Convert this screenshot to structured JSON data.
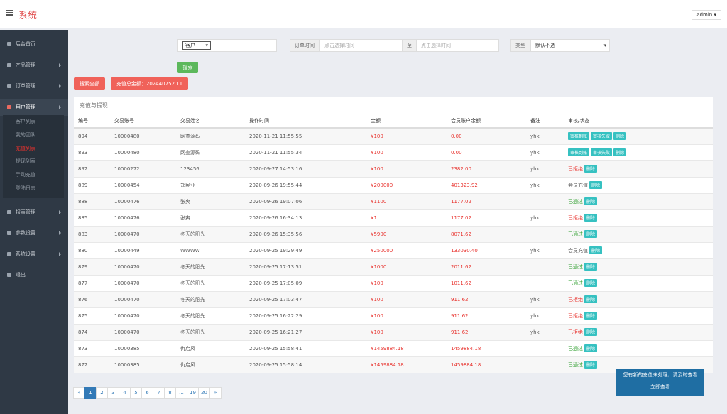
{
  "header": {
    "title": "系统",
    "user": "admin"
  },
  "sidebar": {
    "items": [
      {
        "label": "后台首页"
      },
      {
        "label": "产品管理",
        "has_submenu": true
      },
      {
        "label": "订单管理",
        "has_submenu": true
      },
      {
        "label": "用户管理",
        "has_submenu": true,
        "active": true,
        "children": [
          {
            "label": "客户列表"
          },
          {
            "label": "我的团队"
          },
          {
            "label": "充值列表",
            "active": true
          },
          {
            "label": "提现列表"
          },
          {
            "label": "手动充值"
          },
          {
            "label": "登陆日志"
          }
        ]
      },
      {
        "label": "报表管理",
        "has_submenu": true
      },
      {
        "label": "参数设置",
        "has_submenu": true
      },
      {
        "label": "系统设置",
        "has_submenu": true
      },
      {
        "label": "退出"
      }
    ]
  },
  "search": {
    "customer_select": "客户",
    "time_label": "订单时间",
    "time_from_placeholder": "点击选择时间",
    "to": "至",
    "time_to_placeholder": "点击选择时间",
    "type_label": "类型",
    "type_select": "默认不选",
    "search_button": "搜索",
    "search_all_button": "搜索全部",
    "total": "充值总金额：202440752.11"
  },
  "table": {
    "title": "充值与提现",
    "columns": [
      "编号",
      "交易账号",
      "交易姓名",
      "操作时间",
      "金额",
      "会员账户余额",
      "备注",
      "审核/状态"
    ],
    "rows": [
      {
        "id": "894",
        "account": "10000480",
        "name": "网查源码",
        "time": "2020-11-21 11:55:55",
        "amount": "¥100",
        "balance": "0.00",
        "note": "yhk",
        "actions": [
          "审核到账",
          "审核失败",
          "删除"
        ]
      },
      {
        "id": "893",
        "account": "10000480",
        "name": "网查源码",
        "time": "2020-11-21 11:55:34",
        "amount": "¥100",
        "balance": "0.00",
        "note": "yhk",
        "actions": [
          "审核到账",
          "审核失败",
          "删除"
        ]
      },
      {
        "id": "892",
        "account": "10000272",
        "name": "123456",
        "time": "2020-09-27 14:53:16",
        "amount": "¥100",
        "balance": "2382.00",
        "note": "yhk",
        "status": {
          "text": "已拒绝",
          "color": "#e8322d"
        },
        "actions": [
          "删除"
        ]
      },
      {
        "id": "889",
        "account": "10000454",
        "name": "郑民业",
        "time": "2020-09-26 19:55:44",
        "amount": "¥200000",
        "balance": "401323.92",
        "note": "yhk",
        "status": {
          "text": "会员充值",
          "color": "#555555"
        },
        "actions": [
          "删除"
        ]
      },
      {
        "id": "888",
        "account": "10000476",
        "name": "张爽",
        "time": "2020-09-26 19:07:06",
        "amount": "¥1100",
        "balance": "1177.02",
        "status": {
          "text": "已通过",
          "color": "#2a9d2a"
        },
        "actions": [
          "删除"
        ]
      },
      {
        "id": "885",
        "account": "10000476",
        "name": "张爽",
        "time": "2020-09-26 16:34:13",
        "amount": "¥1",
        "balance": "1177.02",
        "note": "yhk",
        "status": {
          "text": "已拒绝",
          "color": "#e8322d"
        },
        "actions": [
          "删除"
        ]
      },
      {
        "id": "883",
        "account": "10000470",
        "name": "冬天的阳光",
        "time": "2020-09-26 15:35:56",
        "amount": "¥5900",
        "balance": "8071.62",
        "status": {
          "text": "已通过",
          "color": "#2a9d2a"
        },
        "actions": [
          "删除"
        ]
      },
      {
        "id": "880",
        "account": "10000449",
        "name": "WWWW",
        "time": "2020-09-25 19:29:49",
        "amount": "¥250000",
        "balance": "133030.40",
        "note": "yhk",
        "status": {
          "text": "会员充值",
          "color": "#555555"
        },
        "actions": [
          "删除"
        ]
      },
      {
        "id": "879",
        "account": "10000470",
        "name": "冬天的阳光",
        "time": "2020-09-25 17:13:51",
        "amount": "¥1000",
        "balance": "2011.62",
        "status": {
          "text": "已通过",
          "color": "#2a9d2a"
        },
        "actions": [
          "删除"
        ]
      },
      {
        "id": "877",
        "account": "10000470",
        "name": "冬天的阳光",
        "time": "2020-09-25 17:05:09",
        "amount": "¥100",
        "balance": "1011.62",
        "status": {
          "text": "已通过",
          "color": "#2a9d2a"
        },
        "actions": [
          "删除"
        ]
      },
      {
        "id": "876",
        "account": "10000470",
        "name": "冬天的阳光",
        "time": "2020-09-25 17:03:47",
        "amount": "¥100",
        "balance": "911.62",
        "note": "yhk",
        "status": {
          "text": "已拒绝",
          "color": "#e8322d"
        },
        "actions": [
          "删除"
        ]
      },
      {
        "id": "875",
        "account": "10000470",
        "name": "冬天的阳光",
        "time": "2020-09-25 16:22:29",
        "amount": "¥100",
        "balance": "911.62",
        "note": "yhk",
        "status": {
          "text": "已拒绝",
          "color": "#e8322d"
        },
        "actions": [
          "删除"
        ]
      },
      {
        "id": "874",
        "account": "10000470",
        "name": "冬天的阳光",
        "time": "2020-09-25 16:21:27",
        "amount": "¥100",
        "balance": "911.62",
        "note": "yhk",
        "status": {
          "text": "已拒绝",
          "color": "#e8322d"
        },
        "actions": [
          "删除"
        ]
      },
      {
        "id": "873",
        "account": "10000385",
        "name": "仇启风",
        "time": "2020-09-25 15:58:41",
        "amount": "¥1459884.18",
        "balance": "1459884.18",
        "status": {
          "text": "已通过",
          "color": "#2a9d2a"
        },
        "actions": [
          "删除"
        ]
      },
      {
        "id": "872",
        "account": "10000385",
        "name": "仇启风",
        "time": "2020-09-25 15:58:14",
        "amount": "¥1459884.18",
        "balance": "1459884.18",
        "status": {
          "text": "已通过",
          "color": "#2a9d2a"
        },
        "actions": [
          "删除"
        ]
      }
    ]
  },
  "pagination": {
    "pages": [
      "«",
      "1",
      "2",
      "3",
      "4",
      "5",
      "6",
      "7",
      "8",
      "...",
      "19",
      "20",
      "»"
    ],
    "active": 1
  },
  "notice": {
    "text": "您有新的充值未处理，请及时查看",
    "link": "立即查看"
  }
}
